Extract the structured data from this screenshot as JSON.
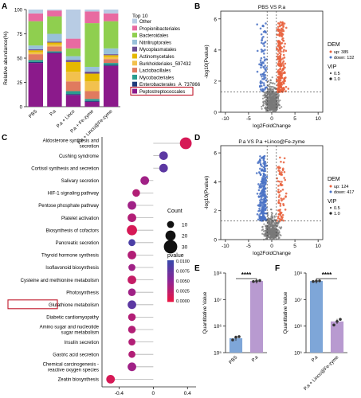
{
  "panels": {
    "A": "A",
    "B": "B",
    "C": "C",
    "D": "D",
    "E": "E",
    "F": "F"
  },
  "chart_data": [
    {
      "id": "A",
      "type": "bar",
      "stacked": true,
      "ylabel": "Relative abundance(%)",
      "ylim": [
        0,
        100
      ],
      "yticks": [
        0,
        25,
        50,
        75,
        100
      ],
      "categories": [
        "PBS",
        "P.a",
        "P.a + Linco",
        "P.a + Fe-zyme",
        "P.a + Linco@Fe-zyme"
      ],
      "legend_title": "Top 10",
      "highlighted_legend_item": "Peptostreptococcales",
      "series": [
        {
          "name": "Peptostreptococcales",
          "color": "#8b1a8b",
          "values": [
            45,
            55,
            12,
            5,
            42
          ]
        },
        {
          "name": "Enterobacterales_A_737866",
          "color": "#1f3a7a",
          "values": [
            1,
            1,
            1,
            1,
            1
          ]
        },
        {
          "name": "Mycobacteriales",
          "color": "#2a9d8f",
          "values": [
            2,
            1,
            3,
            2,
            2
          ]
        },
        {
          "name": "Lactobacillales",
          "color": "#e07a5f",
          "values": [
            6,
            5,
            10,
            8,
            4
          ]
        },
        {
          "name": "Burkholderiales_597432",
          "color": "#f2c14e",
          "values": [
            2,
            2,
            10,
            10,
            2
          ]
        },
        {
          "name": "Actinomycetales",
          "color": "#e5b800",
          "values": [
            2,
            2,
            10,
            8,
            2
          ]
        },
        {
          "name": "Mycoplasmatales",
          "color": "#6a4c93",
          "values": [
            1,
            1,
            2,
            2,
            1
          ]
        },
        {
          "name": "Nitriliruptorales",
          "color": "#98c1d9",
          "values": [
            4,
            8,
            4,
            5,
            6
          ]
        },
        {
          "name": "Bacteroidales",
          "color": "#8fcf4f",
          "values": [
            25,
            18,
            8,
            45,
            28
          ]
        },
        {
          "name": "Propionibacteriales",
          "color": "#e86aa1",
          "values": [
            8,
            6,
            10,
            12,
            8
          ]
        },
        {
          "name": "Other",
          "color": "#b8cce4",
          "values": [
            4,
            1,
            30,
            2,
            4
          ]
        }
      ]
    },
    {
      "id": "B",
      "type": "scatter",
      "title": "PBS VS P.a",
      "xlabel": "log2FoldChange",
      "ylabel": "-log10(Pvalue)",
      "xlim": [
        -11,
        11
      ],
      "ylim": [
        0,
        6.5
      ],
      "xticks": [
        -10,
        -5,
        0,
        5,
        10
      ],
      "yticks": [
        0,
        2,
        4,
        6
      ],
      "threshold_lines": {
        "x": [
          -1,
          1
        ],
        "y": 1.3
      },
      "legend_title": "DEM",
      "up_label": "up: 385",
      "down_label": "down: 132",
      "vip_title": "VIP",
      "vip_values": [
        "0.5",
        "1.0"
      ],
      "colors": {
        "up": "#e8603c",
        "down": "#4a72c4",
        "ns": "#7a7a7a"
      },
      "up_count": 385,
      "down_count": 132
    },
    {
      "id": "C",
      "type": "scatter",
      "xlabel": "Differential Abundance Score",
      "xlim": [
        -0.6,
        0.5
      ],
      "xticks": [
        -0.4,
        0,
        0.4
      ],
      "size_legend_title": "Count",
      "size_legend_values": [
        10,
        20,
        30
      ],
      "color_legend_title": "pvalue",
      "color_legend_ticks": [
        "0.0100",
        "0.0075",
        "0.0050",
        "0.0025",
        "0.0000"
      ],
      "highlighted_category": "Glutathione metabolism",
      "categories": [
        "Aldosterone synthesis and secretion",
        "Cushing syndrome",
        "Cortisol synthesis and secretion",
        "Salivary secretion",
        "HIF-1 signaling pathway",
        "Pentose phosphate pathway",
        "Platelet activation",
        "Biosynthesis of cofactors",
        "Pancreatic secretion",
        "Thyroid hormone synthesis",
        "Isoflavonoid biosynthesis",
        "Cysteine and methionine metabolism",
        "Photosynthesis",
        "Glutathione metabolism",
        "Diabetic cardiomyopathy",
        "Amino sugar and nucleotide sugar metabolism",
        "Insulin secretion",
        "Gastric acid secretion",
        "Chemical carcinogenesis - reactive oxygen species",
        "Zeatin biosynthesis"
      ],
      "scores": [
        0.38,
        0.12,
        0.12,
        -0.1,
        -0.2,
        -0.25,
        -0.25,
        -0.25,
        -0.25,
        -0.25,
        -0.25,
        -0.25,
        -0.25,
        -0.25,
        -0.25,
        -0.25,
        -0.25,
        -0.25,
        -0.25,
        -0.5
      ],
      "counts": [
        25,
        15,
        15,
        15,
        12,
        15,
        15,
        20,
        10,
        15,
        10,
        15,
        12,
        15,
        12,
        12,
        10,
        10,
        15,
        15
      ],
      "pvalues": [
        0.001,
        0.008,
        0.008,
        0.004,
        0.003,
        0.004,
        0.003,
        0.001,
        0.009,
        0.003,
        0.004,
        0.002,
        0.004,
        0.008,
        0.003,
        0.003,
        0.003,
        0.003,
        0.004,
        0.001
      ]
    },
    {
      "id": "D",
      "type": "scatter",
      "title": "P.a VS P.a +Linco@Fe-zyme",
      "xlabel": "log2FoldChange",
      "ylabel": "-log10(Pvalue)",
      "xlim": [
        -11,
        11
      ],
      "ylim": [
        0,
        6.5
      ],
      "xticks": [
        -10,
        -5,
        0,
        5,
        10
      ],
      "yticks": [
        0,
        2,
        4,
        6
      ],
      "threshold_lines": {
        "x": [
          -1,
          1
        ],
        "y": 1.3
      },
      "legend_title": "DEM",
      "up_label": "up: 124",
      "down_label": "down: 417",
      "vip_title": "VIP",
      "vip_values": [
        "0.5",
        "1.0"
      ],
      "colors": {
        "up": "#e8603c",
        "down": "#4a72c4",
        "ns": "#7a7a7a"
      },
      "up_count": 124,
      "down_count": 417
    },
    {
      "id": "E",
      "type": "bar",
      "ylabel": "Quantitative Value",
      "log_y": true,
      "ylim": [
        100000,
        100000000
      ],
      "yticks": [
        "10⁵",
        "10⁶",
        "10⁷",
        "10⁸"
      ],
      "categories": [
        "PBS",
        "P.a"
      ],
      "values": [
        350000,
        50000000
      ],
      "colors": [
        "#7ea6d8",
        "#b89ad0"
      ],
      "points": [
        [
          300000,
          380000,
          400000
        ],
        [
          48000000,
          50000000,
          52000000
        ]
      ],
      "significance": "****"
    },
    {
      "id": "F",
      "type": "bar",
      "ylabel": "Quantitative Value",
      "log_y": true,
      "ylim": [
        100000,
        100000000
      ],
      "yticks": [
        "10⁵",
        "10⁶",
        "10⁷",
        "10⁸"
      ],
      "categories": [
        "P.a",
        "P.a + Linco@Fe-zyme"
      ],
      "values": [
        50000000,
        1500000
      ],
      "colors": [
        "#7ea6d8",
        "#b89ad0"
      ],
      "points": [
        [
          48000000,
          50000000,
          51000000
        ],
        [
          1100000,
          1500000,
          1800000
        ]
      ],
      "significance": "****"
    }
  ]
}
